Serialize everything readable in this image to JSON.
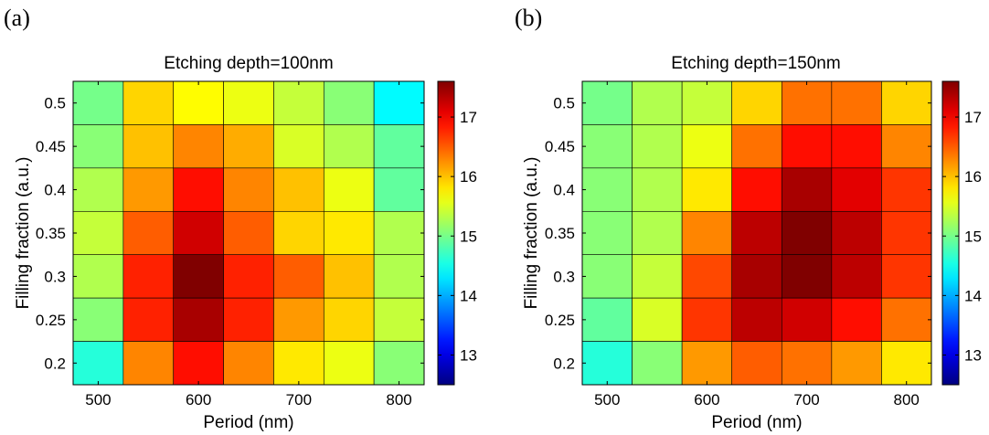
{
  "chart_data": [
    {
      "type": "heatmap",
      "panel_label": "(a)",
      "title": "Etching depth=100nm",
      "xlabel": "Period (nm)",
      "ylabel": "Filling fraction (a.u.)",
      "x_categories": [
        500,
        550,
        600,
        650,
        700,
        750,
        800
      ],
      "x_tick_labels": [
        "500",
        "600",
        "700",
        "800"
      ],
      "x_tick_values": [
        500,
        600,
        700,
        800
      ],
      "y_categories": [
        0.5,
        0.45,
        0.4,
        0.35,
        0.3,
        0.25,
        0.2
      ],
      "y_tick_labels": [
        "0.5",
        "0.45",
        "0.4",
        "0.35",
        "0.3",
        "0.25",
        "0.2"
      ],
      "values": [
        [
          15.0,
          15.9,
          15.7,
          15.6,
          15.4,
          15.1,
          14.4
        ],
        [
          15.1,
          16.0,
          16.3,
          16.1,
          15.5,
          15.3,
          14.9
        ],
        [
          15.3,
          16.2,
          16.9,
          16.3,
          16.0,
          15.6,
          14.9
        ],
        [
          15.4,
          16.5,
          17.2,
          16.5,
          15.9,
          15.8,
          15.3
        ],
        [
          15.3,
          16.8,
          17.6,
          16.8,
          16.5,
          16.0,
          15.3
        ],
        [
          15.1,
          16.8,
          17.4,
          16.8,
          16.2,
          15.9,
          15.4
        ],
        [
          14.6,
          16.3,
          16.9,
          16.3,
          15.8,
          15.6,
          15.1
        ]
      ],
      "colorbar": {
        "range": [
          12.5,
          17.6
        ],
        "ticks": [
          13,
          14,
          15,
          16,
          17
        ]
      },
      "grid": true
    },
    {
      "type": "heatmap",
      "panel_label": "(b)",
      "title": "Etching depth=150nm",
      "xlabel": "Period (nm)",
      "ylabel": "Filling fraction (a.u.)",
      "x_categories": [
        500,
        550,
        600,
        650,
        700,
        750,
        800
      ],
      "x_tick_labels": [
        "500",
        "600",
        "700",
        "800"
      ],
      "x_tick_values": [
        500,
        600,
        700,
        800
      ],
      "y_categories": [
        0.5,
        0.45,
        0.4,
        0.35,
        0.3,
        0.25,
        0.2
      ],
      "y_tick_labels": [
        "0.5",
        "0.45",
        "0.4",
        "0.35",
        "0.3",
        "0.25",
        "0.2"
      ],
      "values": [
        [
          15.0,
          15.3,
          15.4,
          15.9,
          16.4,
          16.4,
          15.9
        ],
        [
          15.1,
          15.3,
          15.6,
          16.4,
          16.9,
          16.9,
          16.3
        ],
        [
          15.1,
          15.3,
          15.8,
          16.9,
          17.4,
          17.1,
          16.7
        ],
        [
          15.1,
          15.3,
          16.3,
          17.3,
          17.6,
          17.3,
          16.7
        ],
        [
          15.1,
          15.4,
          16.6,
          17.4,
          17.6,
          17.3,
          16.7
        ],
        [
          14.9,
          15.5,
          16.7,
          17.3,
          17.2,
          16.9,
          16.4
        ],
        [
          14.6,
          15.1,
          16.2,
          16.5,
          16.4,
          16.2,
          15.8
        ]
      ],
      "colorbar": {
        "range": [
          12.5,
          17.6
        ],
        "ticks": [
          13,
          14,
          15,
          16,
          17
        ]
      },
      "grid": true
    }
  ]
}
